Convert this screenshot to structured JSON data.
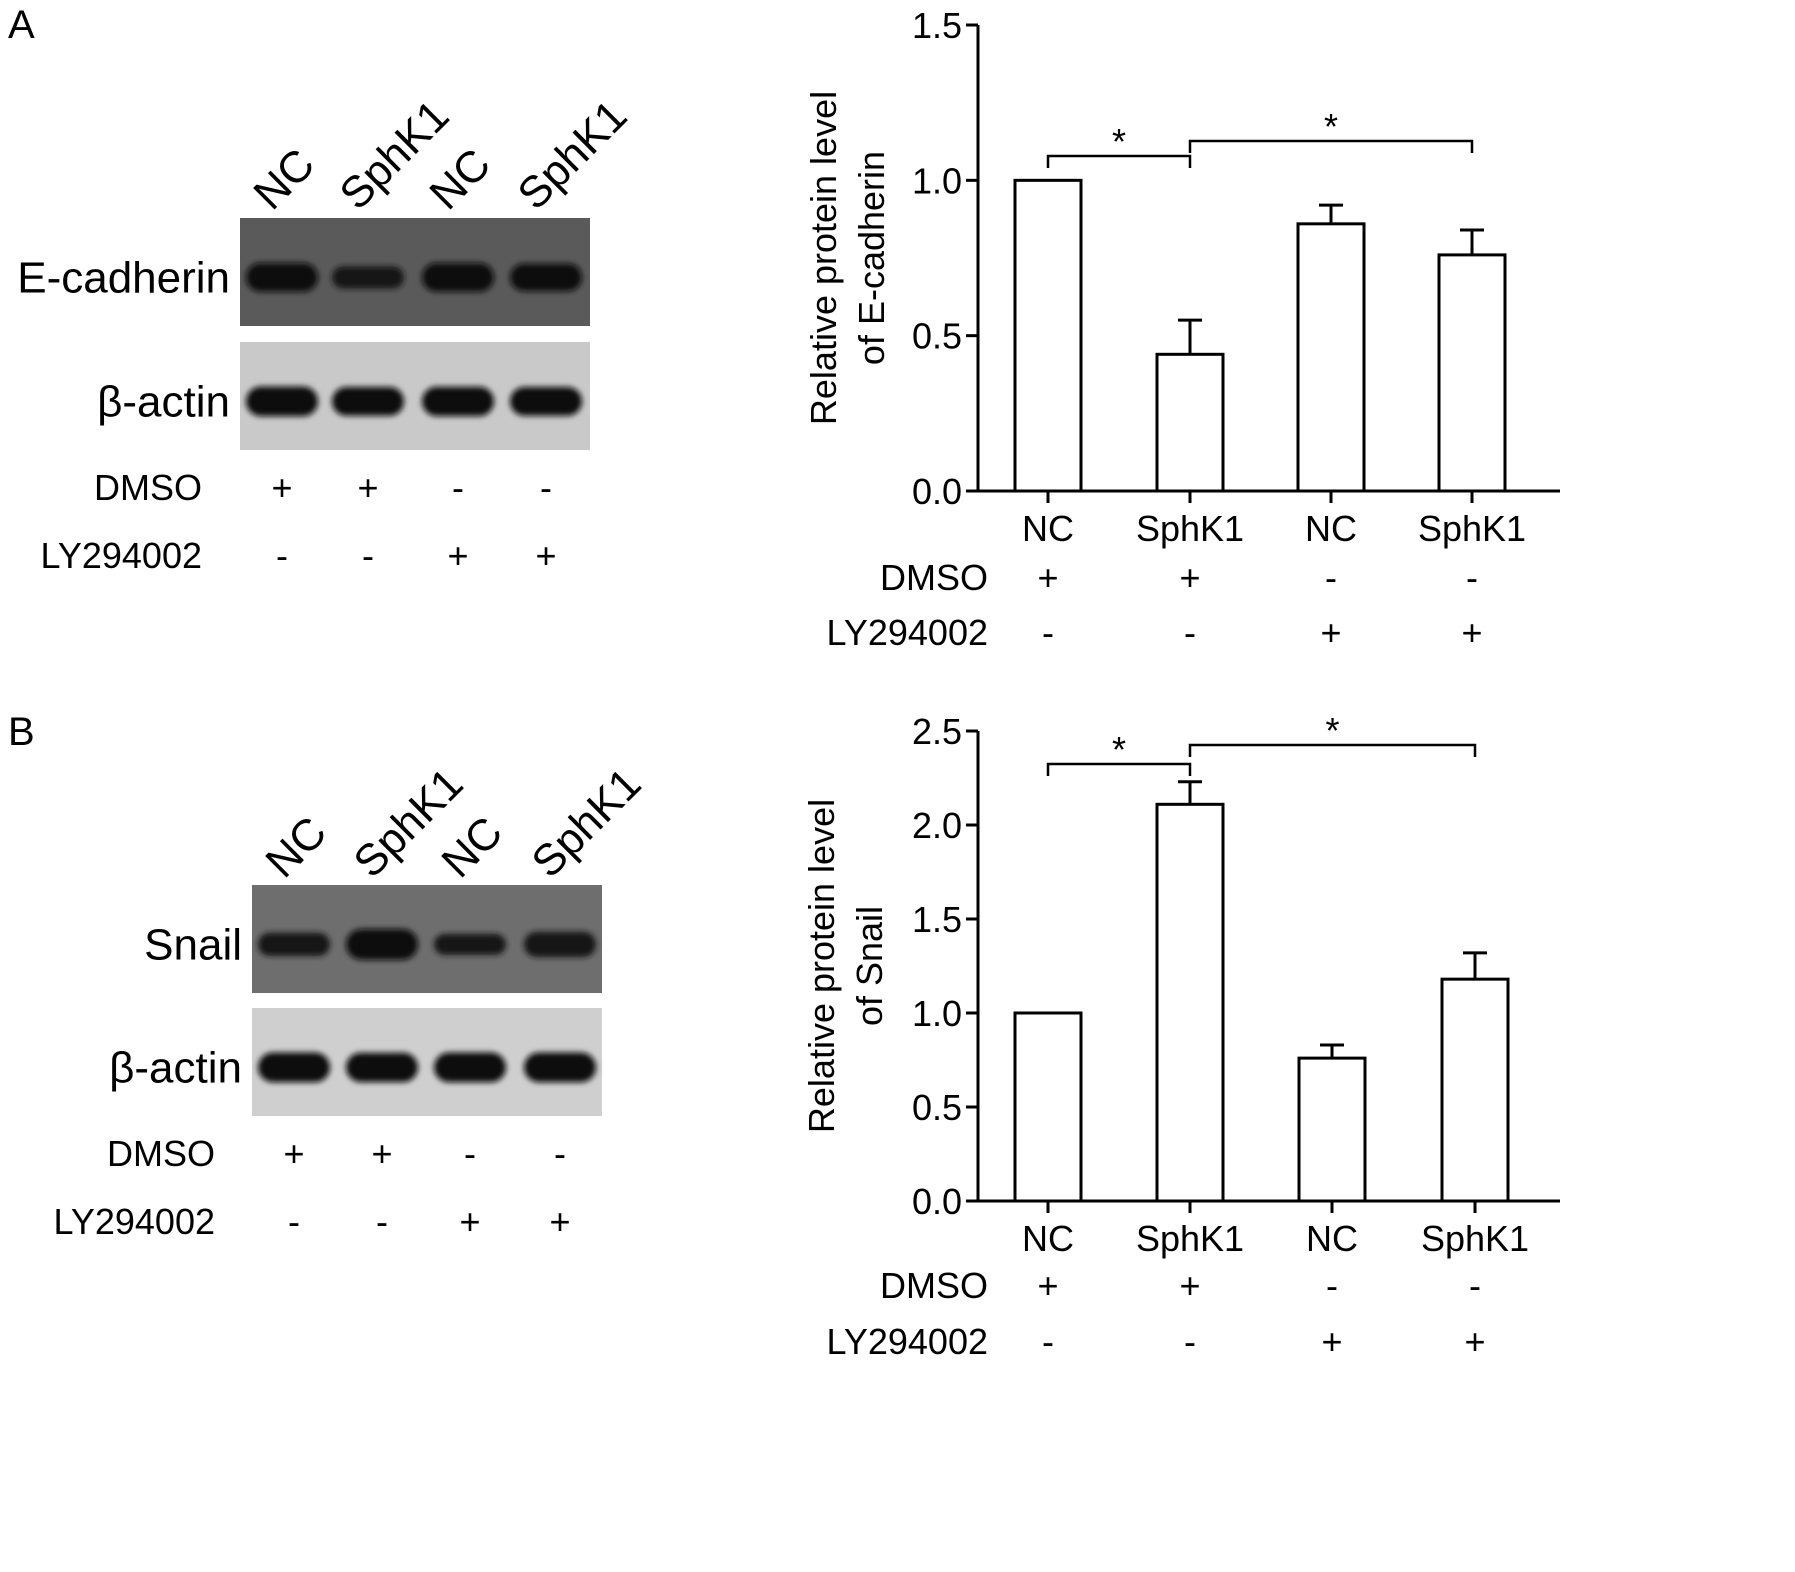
{
  "panel_A": {
    "letter": "A",
    "blot": {
      "lanes": [
        "NC",
        "SphK1",
        "NC",
        "SphK1"
      ],
      "rows": [
        {
          "label": "E-cadherin",
          "intensity": [
            0.85,
            0.55,
            0.85,
            0.8
          ]
        },
        {
          "label": "β-actin",
          "intensity": [
            0.9,
            0.85,
            0.88,
            0.85
          ]
        }
      ],
      "treatments": [
        {
          "name": "DMSO",
          "marks": [
            "+",
            "+",
            "-",
            "-"
          ]
        },
        {
          "name": "LY294002",
          "marks": [
            "-",
            "-",
            "+",
            "+"
          ]
        }
      ]
    }
  },
  "panel_B": {
    "letter": "B",
    "blot": {
      "lanes": [
        "NC",
        "SphK1",
        "NC",
        "SphK1"
      ],
      "rows": [
        {
          "label": "Snail",
          "intensity": [
            0.6,
            0.95,
            0.5,
            0.7
          ]
        },
        {
          "label": "β-actin",
          "intensity": [
            0.9,
            0.88,
            0.9,
            0.9
          ]
        }
      ],
      "treatments": [
        {
          "name": "DMSO",
          "marks": [
            "+",
            "+",
            "-",
            "-"
          ]
        },
        {
          "name": "LY294002",
          "marks": [
            "-",
            "-",
            "+",
            "+"
          ]
        }
      ]
    }
  },
  "chart_data": [
    {
      "type": "bar",
      "title": "",
      "ylabel_line1": "Relative protein level",
      "ylabel_line2": "of E-cadherin",
      "categories": [
        "NC",
        "SphK1",
        "NC",
        "SphK1"
      ],
      "values": [
        1.0,
        0.44,
        0.86,
        0.76
      ],
      "errors": [
        0,
        0.11,
        0.06,
        0.08
      ],
      "ylim": [
        0,
        1.5
      ],
      "yticks": [
        "0.0",
        "0.5",
        "1.0",
        "1.5"
      ],
      "significance": [
        {
          "from": 0,
          "to": 1,
          "label": "*"
        },
        {
          "from": 1,
          "to": 3,
          "label": "*"
        }
      ],
      "treatments": [
        {
          "name": "DMSO",
          "marks": [
            "+",
            "+",
            "-",
            "-"
          ]
        },
        {
          "name": "LY294002",
          "marks": [
            "-",
            "-",
            "+",
            "+"
          ]
        }
      ]
    },
    {
      "type": "bar",
      "title": "",
      "ylabel_line1": "Relative protein level",
      "ylabel_line2": "of Snail",
      "categories": [
        "NC",
        "SphK1",
        "NC",
        "SphK1"
      ],
      "values": [
        1.0,
        2.11,
        0.76,
        1.18
      ],
      "errors": [
        0,
        0.12,
        0.07,
        0.14
      ],
      "ylim": [
        0,
        2.5
      ],
      "yticks": [
        "0.0",
        "0.5",
        "1.0",
        "1.5",
        "2.0",
        "2.5"
      ],
      "significance": [
        {
          "from": 0,
          "to": 1,
          "label": "*"
        },
        {
          "from": 1,
          "to": 3,
          "label": "*"
        }
      ],
      "treatments": [
        {
          "name": "DMSO",
          "marks": [
            "+",
            "+",
            "-",
            "-"
          ]
        },
        {
          "name": "LY294002",
          "marks": [
            "-",
            "-",
            "+",
            "+"
          ]
        }
      ]
    }
  ]
}
